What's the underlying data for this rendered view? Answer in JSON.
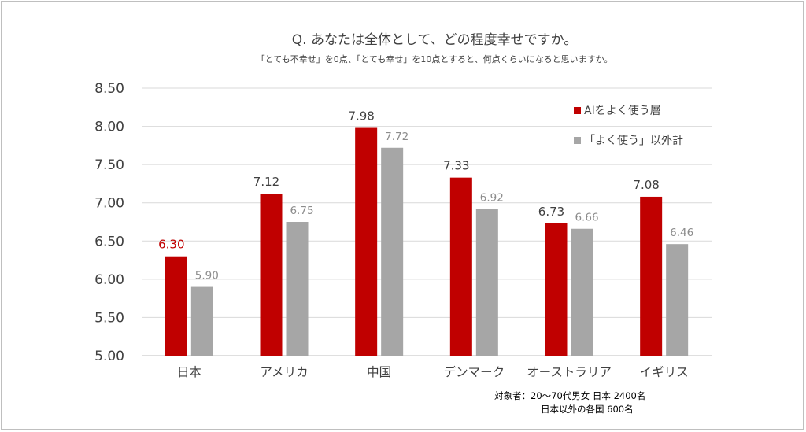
{
  "chart_data": {
    "type": "bar",
    "title": "Q. あなたは全体として、どの程度幸せですか。",
    "subtitle": "「とても不幸せ」を0点、「とても幸せ」を10点とすると、何点くらいになると思いますか。",
    "categories": [
      "日本",
      "アメリカ",
      "中国",
      "デンマーク",
      "オーストラリア",
      "イギリス"
    ],
    "series": [
      {
        "name": "AIをよく使う層",
        "color": "#c00000",
        "values": [
          6.3,
          7.12,
          7.98,
          7.33,
          6.73,
          7.08
        ],
        "labels": [
          "6.30",
          "7.12",
          "7.98",
          "7.33",
          "6.73",
          "7.08"
        ],
        "label_colors": [
          "#c00000",
          "#404040",
          "#404040",
          "#404040",
          "#404040",
          "#404040"
        ]
      },
      {
        "name": "「よく使う」以外計",
        "color": "#a6a6a6",
        "values": [
          5.9,
          6.75,
          7.72,
          6.92,
          6.66,
          6.46
        ],
        "labels": [
          "5.90",
          "6.75",
          "7.72",
          "6.92",
          "6.66",
          "6.46"
        ],
        "label_colors": [
          "#8c8c8c",
          "#8c8c8c",
          "#8c8c8c",
          "#8c8c8c",
          "#8c8c8c",
          "#8c8c8c"
        ]
      }
    ],
    "ylim": [
      5.0,
      8.5
    ],
    "yticks": [
      "5.00",
      "5.50",
      "6.00",
      "6.50",
      "7.00",
      "7.50",
      "8.00",
      "8.50"
    ],
    "grid": true,
    "legend_position": "top-right"
  },
  "note": {
    "line1": "対象者：20～70代男女  日本  2400名",
    "line2": "日本以外の各国  600名"
  }
}
